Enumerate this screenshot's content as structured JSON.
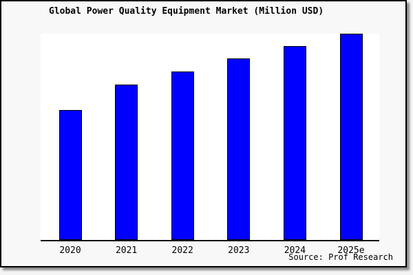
{
  "colors": {
    "bar_fill": "#0000ff",
    "bar_border": "#000000",
    "plot_bg": "#ffffff",
    "frame_bg": "#f8f8f8",
    "axis": "#000000"
  },
  "chart_data": {
    "type": "bar",
    "title": "Global Power Quality Equipment Market (Million USD)",
    "categories": [
      "2020",
      "2021",
      "2022",
      "2023",
      "2024",
      "2025e"
    ],
    "values": [
      189,
      226,
      245,
      264,
      282,
      300
    ],
    "value_note": "relative heights; no y-axis scale, tick labels or gridlines shown",
    "xlabel": "",
    "ylabel": "",
    "ylim": [
      0,
      302
    ],
    "grid": false,
    "legend": false,
    "annotations": [
      "Source: Prof Research"
    ]
  }
}
